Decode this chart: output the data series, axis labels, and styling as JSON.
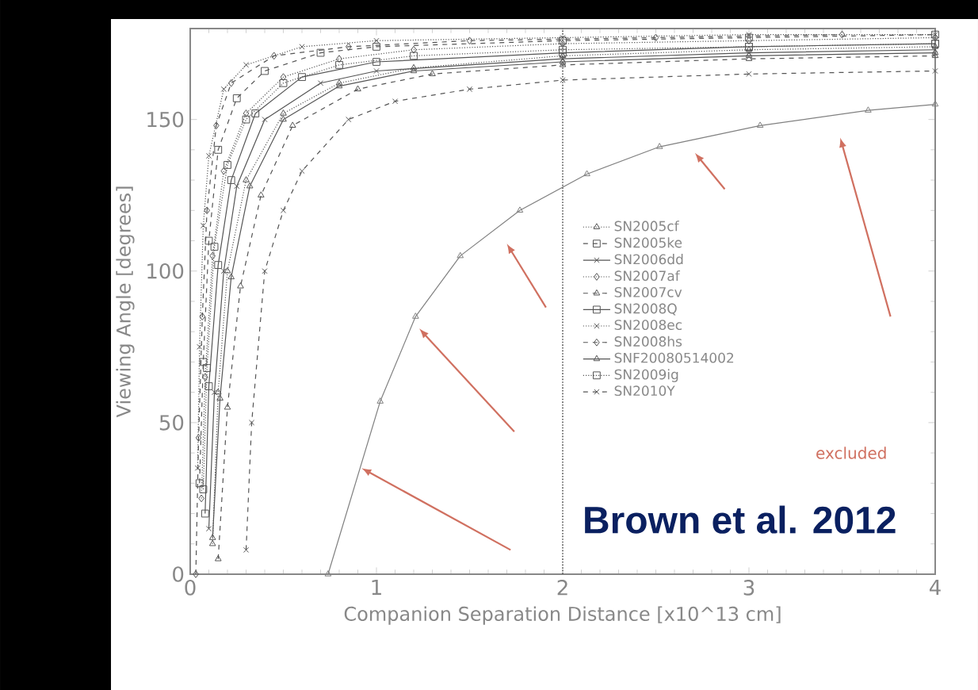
{
  "chart_data": {
    "type": "line",
    "xlabel": "Companion Separation Distance [x10^13 cm]",
    "ylabel": "Viewing Angle [degrees]",
    "xlim": [
      0,
      4
    ],
    "ylim": [
      0,
      180
    ],
    "xticks": [
      0,
      1,
      2,
      3,
      4
    ],
    "yticks": [
      0,
      50,
      100,
      150
    ],
    "grid": false,
    "legend": "right",
    "series": [
      {
        "name": "SN2005cf",
        "color": "#555555",
        "marker": "triangle",
        "line_style": "dotted",
        "x": [
          0.12,
          0.15,
          0.2,
          0.3,
          0.5,
          0.8,
          1.2,
          2,
          3,
          4
        ],
        "values": [
          10,
          60,
          100,
          130,
          152,
          162,
          167,
          171,
          173,
          174
        ]
      },
      {
        "name": "SN2005ke",
        "color": "#555555",
        "marker": "square",
        "line_style": "dashed",
        "x": [
          0.05,
          0.07,
          0.1,
          0.15,
          0.25,
          0.4,
          0.7,
          1,
          2,
          3,
          4
        ],
        "values": [
          30,
          70,
          110,
          140,
          157,
          166,
          172,
          174,
          176,
          177,
          178
        ]
      },
      {
        "name": "SN2006dd",
        "color": "#555555",
        "marker": "cross",
        "line_style": "solid",
        "x": [
          0.1,
          0.13,
          0.18,
          0.25,
          0.4,
          0.7,
          1,
          2,
          3,
          4
        ],
        "values": [
          15,
          60,
          100,
          128,
          150,
          162,
          166,
          170,
          172,
          173
        ]
      },
      {
        "name": "SN2007af",
        "color": "#555555",
        "marker": "diamond",
        "line_style": "dotted",
        "x": [
          0.06,
          0.08,
          0.12,
          0.18,
          0.3,
          0.5,
          0.8,
          1.2,
          2,
          3,
          4
        ],
        "values": [
          25,
          65,
          105,
          133,
          152,
          164,
          170,
          173,
          175,
          176,
          177
        ]
      },
      {
        "name": "SN2007cv",
        "color": "#555555",
        "marker": "triangle",
        "line_style": "dashed",
        "x": [
          0.15,
          0.2,
          0.27,
          0.38,
          0.55,
          0.9,
          1.3,
          2,
          3,
          4
        ],
        "values": [
          5,
          55,
          95,
          125,
          148,
          160,
          165,
          168,
          170,
          171
        ]
      },
      {
        "name": "SN2008Q",
        "color": "#555555",
        "marker": "square",
        "line_style": "solid",
        "x": [
          0.08,
          0.1,
          0.15,
          0.22,
          0.35,
          0.6,
          1,
          2,
          3,
          4
        ],
        "values": [
          20,
          62,
          102,
          130,
          152,
          164,
          169,
          172,
          174,
          175
        ]
      },
      {
        "name": "SN2008ec",
        "color": "#555555",
        "marker": "cross",
        "line_style": "dotted",
        "x": [
          0.04,
          0.05,
          0.07,
          0.1,
          0.18,
          0.3,
          0.6,
          1,
          2,
          3,
          4
        ],
        "values": [
          35,
          75,
          115,
          138,
          160,
          168,
          174,
          176,
          177,
          178,
          178
        ]
      },
      {
        "name": "SN2008hs",
        "color": "#555555",
        "marker": "diamond",
        "line_style": "dashed",
        "x": [
          0.03,
          0.045,
          0.065,
          0.09,
          0.14,
          0.22,
          0.45,
          0.85,
          1.5,
          2.5,
          3.5
        ],
        "values": [
          0,
          45,
          85,
          120,
          148,
          162,
          171,
          174,
          176,
          177,
          178
        ]
      },
      {
        "name": "SNF20080514002",
        "color": "#555555",
        "marker": "triangle",
        "line_style": "solid",
        "x": [
          0.12,
          0.16,
          0.22,
          0.32,
          0.5,
          0.8,
          1.2,
          2,
          3,
          4
        ],
        "values": [
          12,
          58,
          98,
          128,
          150,
          161,
          166,
          169,
          171,
          172
        ]
      },
      {
        "name": "SN2009ig",
        "color": "#555555",
        "marker": "square",
        "line_style": "dotted",
        "x": [
          0.07,
          0.09,
          0.13,
          0.2,
          0.3,
          0.5,
          0.8,
          1.2,
          2,
          3,
          4
        ],
        "values": [
          28,
          68,
          108,
          135,
          150,
          162,
          168,
          171,
          173,
          174,
          175
        ]
      },
      {
        "name": "SN2010Y",
        "color": "#555555",
        "marker": "cross",
        "line_style": "dashed",
        "x": [
          0.3,
          0.33,
          0.4,
          0.5,
          0.6,
          0.85,
          1.1,
          1.5,
          2,
          3,
          4
        ],
        "values": [
          8,
          50,
          100,
          120,
          133,
          150,
          156,
          160,
          163,
          165,
          166
        ]
      },
      {
        "color": "#808080",
        "marker": "triangle",
        "line_style": "solid",
        "x": [
          0.74,
          1.02,
          1.21,
          1.45,
          1.77,
          2.13,
          2.52,
          3.06,
          3.64,
          4
        ],
        "values": [
          0,
          57,
          85,
          105,
          120,
          132,
          141,
          148,
          153,
          155
        ]
      }
    ],
    "ref_lines": [
      {
        "axis": "x",
        "value": 2,
        "color": "#555555",
        "line_style": "dotted"
      }
    ],
    "annotations": [
      "Brown et al. 2012",
      "excluded"
    ]
  }
}
